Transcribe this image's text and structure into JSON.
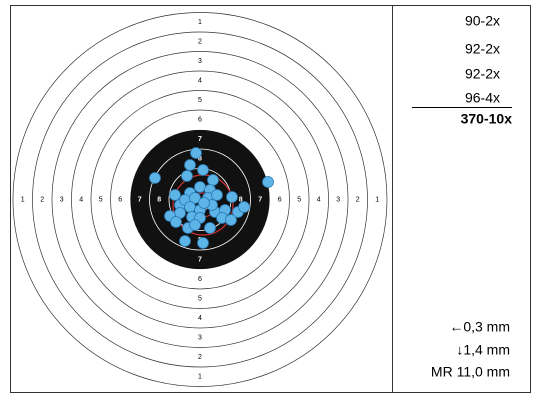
{
  "ring_labels": [
    "1",
    "2",
    "3",
    "4",
    "5",
    "6",
    "7",
    "8"
  ],
  "scores": [
    "90-2x",
    "92-2x",
    "92-2x",
    "96-4x"
  ],
  "total": "370-10x",
  "offsets": [
    "←0,3 mm",
    "↓1,4 mm",
    "MR 11,0 mm"
  ]
}
